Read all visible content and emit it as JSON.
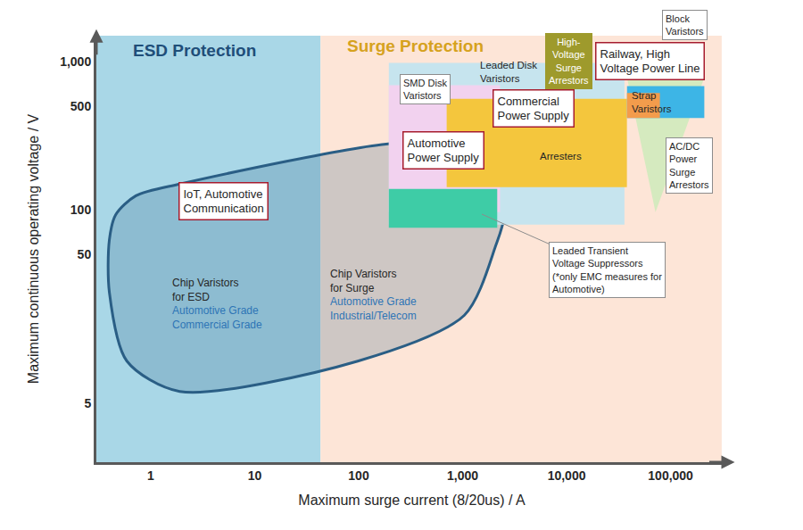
{
  "chart_data": {
    "type": "region",
    "log": true,
    "grid": false,
    "xlabel": "Maximum surge current (8/20us) / A",
    "ylabel": "Maximum continuous operating voltage / V",
    "xlim": [
      0.3,
      350000
    ],
    "ylim": [
      2,
      1500
    ],
    "xticks": [
      1,
      10,
      100,
      {
        "value": 1000,
        "label": "1,000"
      },
      {
        "value": 10000,
        "label": "10,000"
      },
      {
        "value": 100000,
        "label": "100,000"
      }
    ],
    "yticks": [
      5,
      50,
      100,
      500,
      {
        "value": 1000,
        "label": "1,000"
      }
    ],
    "bands": [
      {
        "name": "ESD Protection",
        "color": "#a9d7e7",
        "x": [
          0.3,
          43
        ]
      },
      {
        "name": "Surge Protection",
        "color": "#fde5d7",
        "x": [
          43,
          310000
        ]
      }
    ],
    "regions": [
      {
        "type": "polygon",
        "color": "#2a5e85",
        "line_style": "solid",
        "x": [
          0.4,
          0.46,
          0.72,
          1.9,
          215,
          702,
          1700,
          2520,
          2070,
          1040,
          98,
          1.9,
          0.59,
          0.4
        ],
        "y": [
          63,
          93,
          125,
          150,
          282,
          266,
          203,
          97,
          57,
          19.6,
          9.6,
          6.0,
          9.6,
          28
        ]
      },
      {
        "type": "rect",
        "color": "#c6e4ee",
        "x": [
          195,
          36000
        ],
        "y": [
          80,
          982
        ]
      },
      {
        "type": "rect",
        "color": "#f2d2ef",
        "x": [
          195,
          2290
        ],
        "y": [
          97,
          695
        ]
      },
      {
        "type": "rect",
        "color": "#f4c63d",
        "x": [
          702,
          38000
        ],
        "y": [
          143,
          563
        ]
      },
      {
        "type": "rect",
        "color": "#3ecca6",
        "x": [
          195,
          2150
        ],
        "y": [
          76,
          139
        ]
      },
      {
        "type": "polygon",
        "color": "#d5eabf",
        "x": [
          38100,
          211000,
          71600
        ],
        "y": [
          783,
          783,
          97
        ]
      },
      {
        "type": "rect",
        "color": "#3db5e6",
        "x": [
          38100,
          211000
        ],
        "y": [
          418,
          687
        ]
      },
      {
        "type": "rect",
        "color": "#f39c4c",
        "x": [
          38100,
          78900
        ],
        "y": [
          418,
          617
        ]
      }
    ],
    "boxed_labels": [
      "Railway, High\nVoltage Power Line",
      "Commercial\nPower Supply",
      "Automotive\nPower Supply",
      "IoT, Automotive\nCommunication"
    ],
    "callouts": [
      "SMD Disk\nVaristors",
      "Block\nVaristors",
      "AC/DC\nPower\nSurge\nArrestors",
      "Leaded Transient\nVoltage Suppressors\n(*only EMC measures for\nAutomotive)"
    ],
    "plain_labels": [
      "Leaded Disk\nVaristors",
      "Strap\nVaristors",
      "Arresters"
    ],
    "filled_labels": [
      {
        "text": "High-\nVoltage\nSurge\nArrestors",
        "color": "#9e9a2c"
      }
    ],
    "product_labels": [
      {
        "text": "Chip Varistors\nfor ESD",
        "grades": [
          "Automotive Grade",
          "Commercial Grade"
        ]
      },
      {
        "text": "Chip Varistors\nfor Surge",
        "grades": [
          "Automotive Grade",
          "Industrial/Telecom"
        ]
      }
    ]
  }
}
